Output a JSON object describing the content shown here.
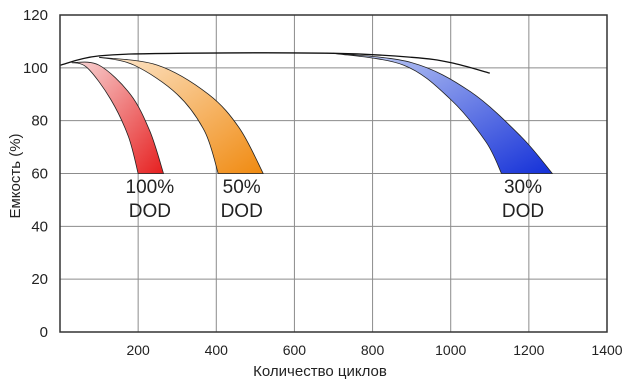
{
  "chart_data": {
    "type": "area",
    "title": "",
    "xlabel": "Количество циклов",
    "ylabel": "Емкость (%)",
    "xlim": [
      0,
      1400
    ],
    "ylim": [
      0,
      120
    ],
    "xticks": [
      200,
      400,
      600,
      800,
      1000,
      1200,
      1400
    ],
    "yticks": [
      0,
      20,
      40,
      60,
      80,
      100,
      120
    ],
    "grid": true,
    "legend": "none",
    "top_curve": [
      [
        0,
        101
      ],
      [
        100,
        104.5
      ],
      [
        300,
        105.5
      ],
      [
        700,
        105.5
      ],
      [
        900,
        104
      ],
      [
        1000,
        102
      ],
      [
        1100,
        98
      ]
    ],
    "series": [
      {
        "name": "100% DOD",
        "label_lines": [
          "100%",
          "DOD"
        ],
        "label_pos": [
          230,
          51
        ],
        "gradient": [
          "#f8d7d7",
          "#e61f1f"
        ],
        "upper": [
          [
            30,
            102
          ],
          [
            100,
            101
          ],
          [
            180,
            90
          ],
          [
            230,
            76
          ],
          [
            265,
            60
          ]
        ],
        "lower": [
          [
            30,
            102
          ],
          [
            70,
            100
          ],
          [
            130,
            88
          ],
          [
            175,
            74
          ],
          [
            200,
            60
          ]
        ]
      },
      {
        "name": "50% DOD",
        "label_lines": [
          "50%",
          "DOD"
        ],
        "label_pos": [
          465,
          51
        ],
        "gradient": [
          "#fde8cf",
          "#f08a10"
        ],
        "upper": [
          [
            100,
            104
          ],
          [
            250,
            101
          ],
          [
            380,
            90
          ],
          [
            460,
            77
          ],
          [
            520,
            60
          ]
        ],
        "lower": [
          [
            100,
            104
          ],
          [
            190,
            101
          ],
          [
            300,
            90
          ],
          [
            370,
            76
          ],
          [
            405,
            60
          ]
        ]
      },
      {
        "name": "30% DOD",
        "label_lines": [
          "30%",
          "DOD"
        ],
        "label_pos": [
          1185,
          51
        ],
        "gradient": [
          "#c8d4f5",
          "#1430d8"
        ],
        "upper": [
          [
            700,
            105.5
          ],
          [
            900,
            102
          ],
          [
            1050,
            91
          ],
          [
            1180,
            74
          ],
          [
            1260,
            60
          ]
        ],
        "lower": [
          [
            700,
            105.5
          ],
          [
            880,
            101
          ],
          [
            1000,
            88
          ],
          [
            1090,
            72
          ],
          [
            1130,
            60
          ]
        ]
      }
    ]
  }
}
